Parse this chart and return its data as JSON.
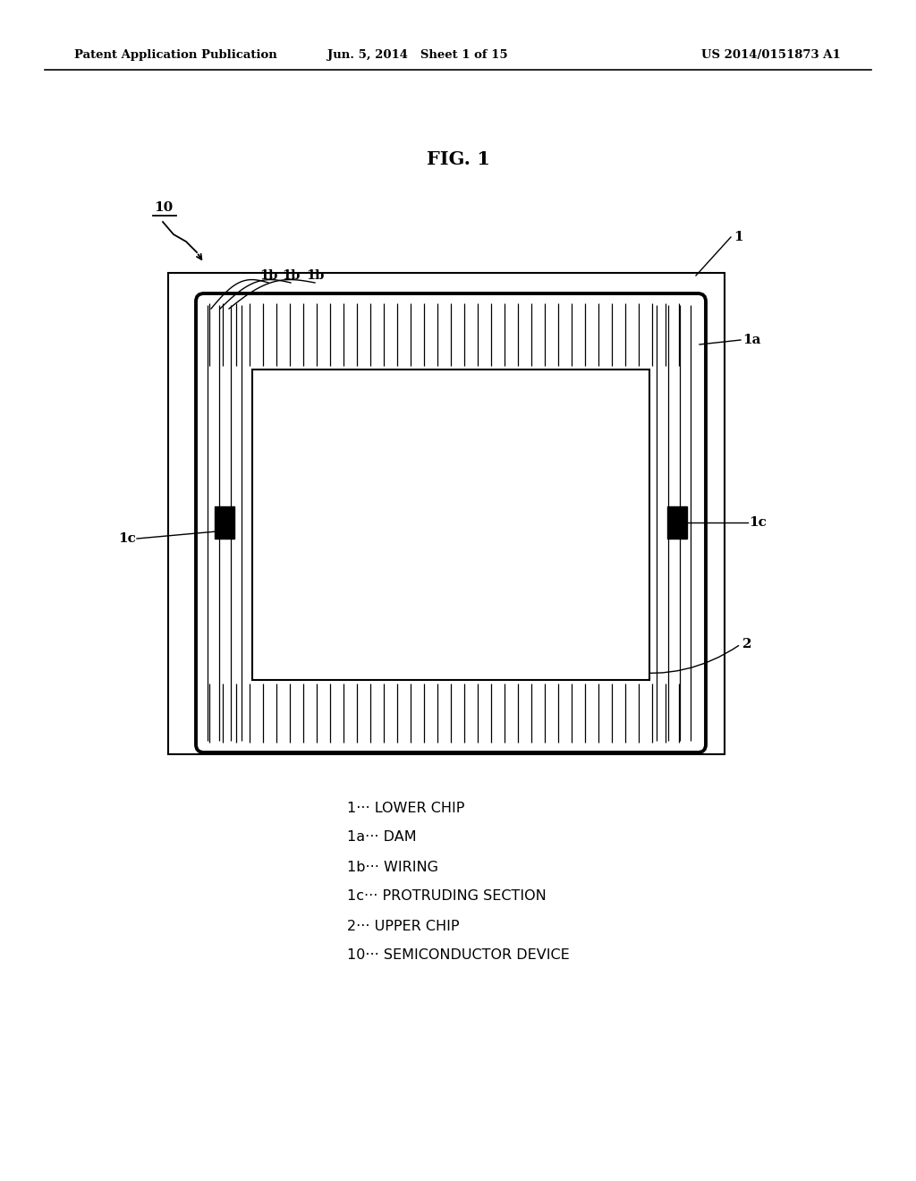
{
  "bg_color": "#ffffff",
  "header_left": "Patent Application Publication",
  "header_mid": "Jun. 5, 2014   Sheet 1 of 15",
  "header_right": "US 2014/0151873 A1",
  "fig_title": "FIG. 1",
  "legend_lines": [
    "1··· LOWER CHIP",
    "1a··· DAM",
    "1b··· WIRING",
    "1c··· PROTRUDING SECTION",
    "2··· UPPER CHIP",
    "10··· SEMICONDUCTOR DEVICE"
  ]
}
